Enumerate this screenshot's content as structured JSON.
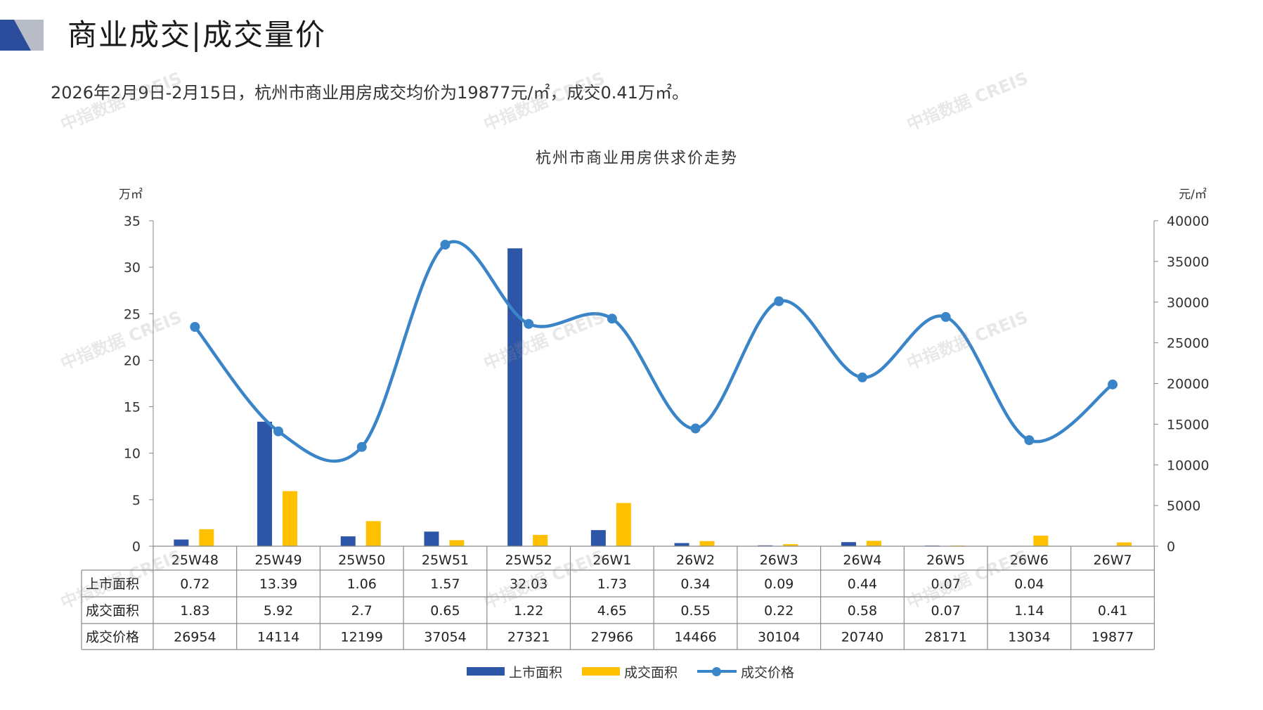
{
  "header": {
    "title": "商业成交|成交量价",
    "summary": "2026年2月9日-2月15日，杭州市商业用房成交均价为19877元/㎡，成交0.41万㎡。",
    "colors": {
      "accent_dark": "#2b4b9b",
      "accent_light": "#b8bcc6"
    }
  },
  "watermark": {
    "text": "中指数据 CREIS"
  },
  "chart_data": {
    "type": "bar",
    "title": "杭州市商业用房供求价走势",
    "y_left_unit": "万㎡",
    "y_right_unit": "元/㎡",
    "y_left_range": [
      0,
      35
    ],
    "y_left_ticks": [
      0,
      5,
      10,
      15,
      20,
      25,
      30,
      35
    ],
    "y_right_range": [
      0,
      40000
    ],
    "y_right_ticks": [
      0,
      5000,
      10000,
      15000,
      20000,
      25000,
      30000,
      35000,
      40000
    ],
    "categories": [
      "25W48",
      "25W49",
      "25W50",
      "25W51",
      "25W52",
      "26W1",
      "26W2",
      "26W3",
      "26W4",
      "26W5",
      "26W6",
      "26W7"
    ],
    "series": [
      {
        "name": "上市面积",
        "type": "bar",
        "axis": "left",
        "color": "#2e56a8",
        "values": [
          0.72,
          13.39,
          1.06,
          1.57,
          32.03,
          1.73,
          0.34,
          0.09,
          0.44,
          0.07,
          0.04,
          null
        ],
        "labels": [
          "0.72",
          "13.39",
          "1.06",
          "1.57",
          "32.03",
          "1.73",
          "0.34",
          "0.09",
          "0.44",
          "0.07",
          "0.04",
          ""
        ]
      },
      {
        "name": "成交面积",
        "type": "bar",
        "axis": "left",
        "color": "#ffc000",
        "values": [
          1.83,
          5.92,
          2.7,
          0.65,
          1.22,
          4.65,
          0.55,
          0.22,
          0.58,
          0.07,
          1.14,
          0.41
        ],
        "labels": [
          "1.83",
          "5.92",
          "2.7",
          "0.65",
          "1.22",
          "4.65",
          "0.55",
          "0.22",
          "0.58",
          "0.07",
          "1.14",
          "0.41"
        ]
      },
      {
        "name": "成交价格",
        "type": "line",
        "axis": "right",
        "color": "#3a84c8",
        "values": [
          26954,
          14114,
          12199,
          37054,
          27321,
          27966,
          14466,
          30104,
          20740,
          28171,
          13034,
          19877
        ],
        "labels": [
          "26954",
          "14114",
          "12199",
          "37054",
          "27321",
          "27966",
          "14466",
          "30104",
          "20740",
          "28171",
          "13034",
          "19877"
        ]
      }
    ],
    "legend_position": "bottom",
    "grid": false
  }
}
